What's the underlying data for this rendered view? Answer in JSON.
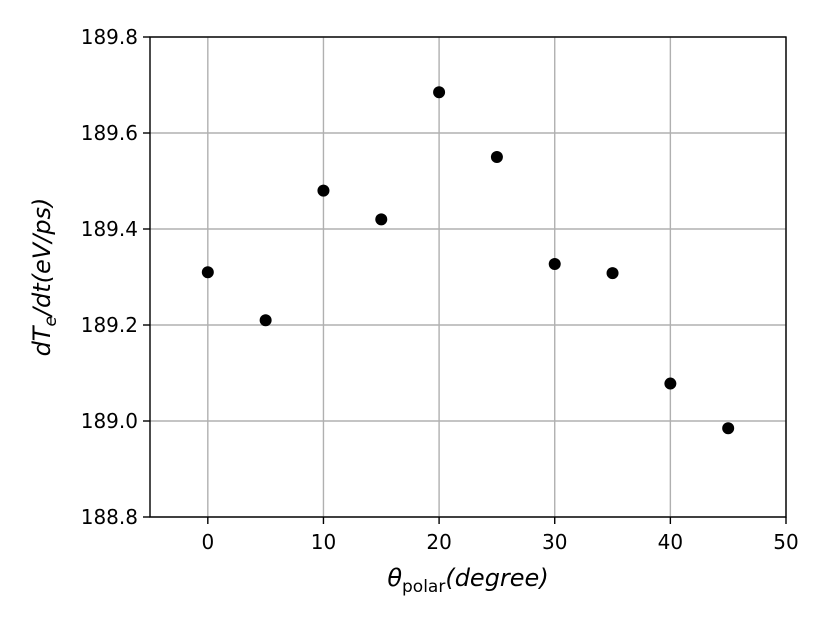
{
  "chart_data": {
    "type": "scatter",
    "xlabel": {
      "theta": "θ",
      "sub": "polar",
      "unit": "(degree)"
    },
    "ylabel": {
      "d1": "d",
      "T": "T",
      "e": "e",
      "rest": "/dt(eV/ps)"
    },
    "xlim": [
      -5,
      50
    ],
    "ylim": [
      188.8,
      189.8
    ],
    "xticks": [
      0,
      10,
      20,
      30,
      40,
      50
    ],
    "yticks": [
      188.8,
      189.0,
      189.2,
      189.4,
      189.6,
      189.8
    ],
    "xtick_labels": [
      "0",
      "10",
      "20",
      "30",
      "40",
      "50"
    ],
    "ytick_labels": [
      "188.8",
      "189.0",
      "189.2",
      "189.4",
      "189.6",
      "189.8"
    ],
    "grid": true,
    "marker_color": "#000000",
    "x": [
      0,
      5,
      10,
      15,
      20,
      25,
      30,
      35,
      40,
      45
    ],
    "y": [
      189.31,
      189.21,
      189.48,
      189.42,
      189.685,
      189.55,
      189.327,
      189.308,
      189.078,
      188.985
    ]
  }
}
